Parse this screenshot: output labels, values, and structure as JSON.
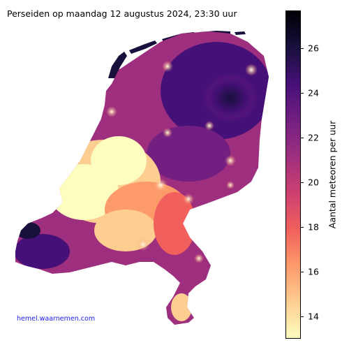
{
  "title": "Perseiden op maandag 12 augustus 2024, 23:30 uur",
  "credit": "hemel.waarnemen.com",
  "colorbar": {
    "label": "Aantal meteoren per uur",
    "min": 13,
    "max": 27.7,
    "ticks": [
      "14",
      "16",
      "18",
      "20",
      "22",
      "24",
      "26"
    ],
    "colors": [
      "#fcfdbf",
      "#fecd90",
      "#fd9a6a",
      "#f1605d",
      "#cd4071",
      "#9e2f7f",
      "#721f81",
      "#451077",
      "#180f3d",
      "#000004"
    ]
  }
}
